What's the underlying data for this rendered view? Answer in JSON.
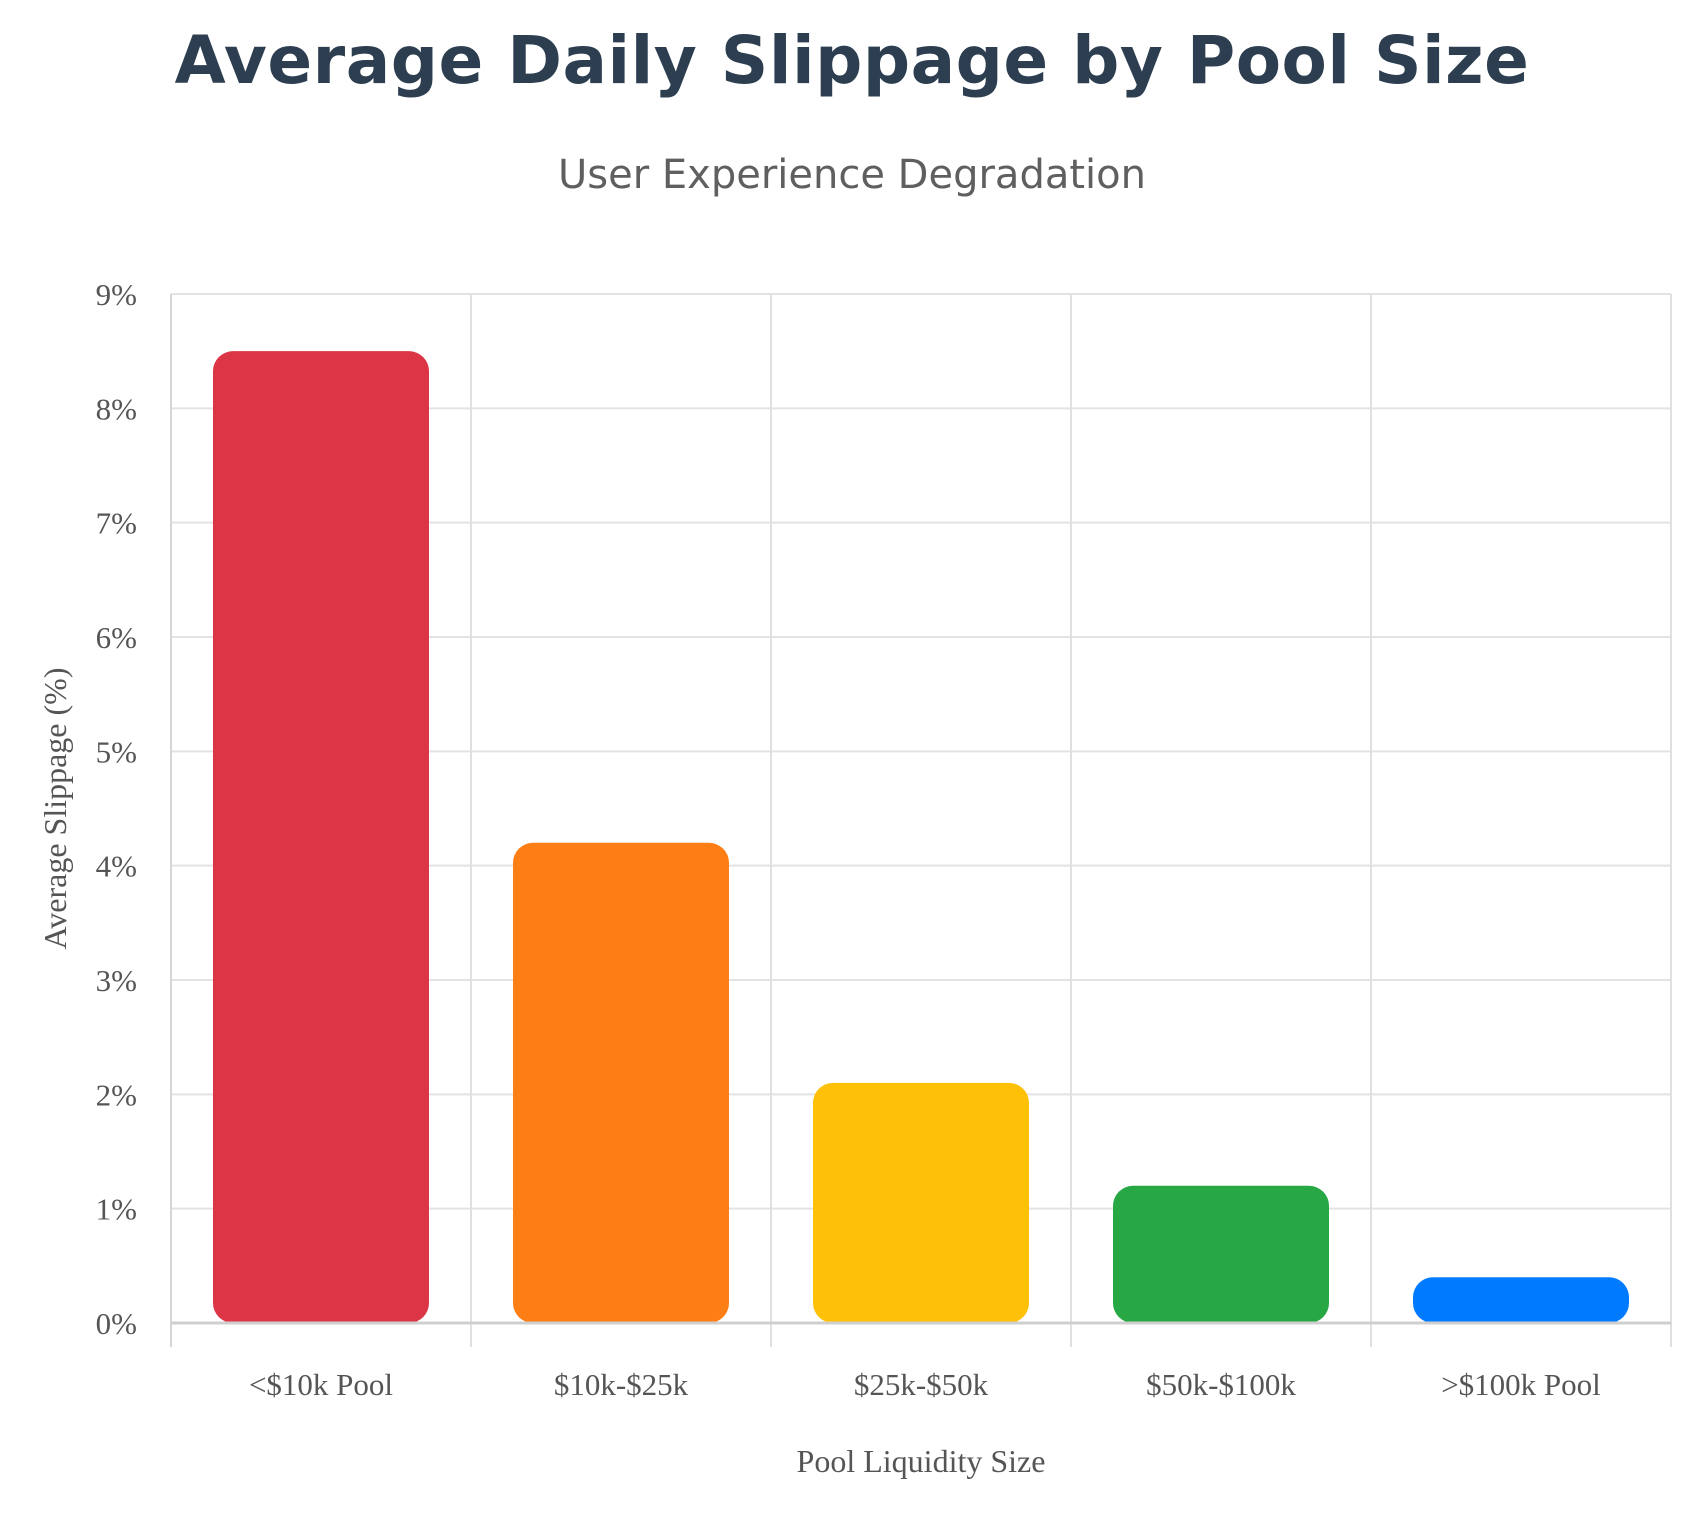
{
  "chart_data": {
    "type": "bar",
    "title": "Average Daily Slippage by Pool Size",
    "subtitle": "User Experience Degradation",
    "xlabel": "Pool Liquidity Size",
    "ylabel": "Average Slippage (%)",
    "categories": [
      "<$10k Pool",
      "$10k-$25k",
      "$25k-$50k",
      "$50k-$100k",
      ">$100k Pool"
    ],
    "values": [
      8.5,
      4.2,
      2.1,
      1.2,
      0.4
    ],
    "colors": [
      "#dc3545",
      "#fd7e14",
      "#ffc107",
      "#28a745",
      "#007bff"
    ],
    "ylim": [
      0,
      9
    ],
    "yticks": [
      0,
      1,
      2,
      3,
      4,
      5,
      6,
      7,
      8,
      9
    ],
    "ytick_suffix": "%",
    "grid": true,
    "legend": "none"
  }
}
